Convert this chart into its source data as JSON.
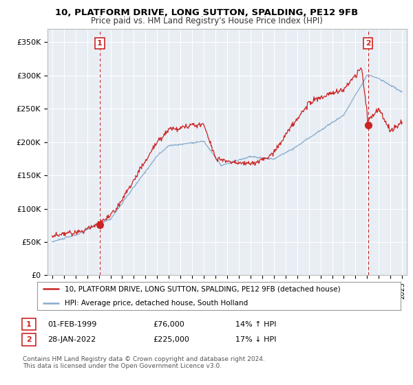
{
  "title": "10, PLATFORM DRIVE, LONG SUTTON, SPALDING, PE12 9FB",
  "subtitle": "Price paid vs. HM Land Registry's House Price Index (HPI)",
  "legend_line1": "10, PLATFORM DRIVE, LONG SUTTON, SPALDING, PE12 9FB (detached house)",
  "legend_line2": "HPI: Average price, detached house, South Holland",
  "footnote": "Contains HM Land Registry data © Crown copyright and database right 2024.\nThis data is licensed under the Open Government Licence v3.0.",
  "annotation1": {
    "num": "1",
    "date": "01-FEB-1999",
    "price": "£76,000",
    "change": "14% ↑ HPI"
  },
  "annotation2": {
    "num": "2",
    "date": "28-JAN-2022",
    "price": "£225,000",
    "change": "17% ↓ HPI"
  },
  "sale1_year": 1999.08,
  "sale1_price": 76000,
  "sale2_year": 2022.07,
  "sale2_price": 225000,
  "background_color": "#ffffff",
  "chart_bg_color": "#e8eef4",
  "red_color": "#cc2222",
  "blue_color": "#88aacc",
  "vline_color": "#cc2222",
  "grid_color": "#ffffff",
  "ylim": [
    0,
    370000
  ],
  "xlim_start": 1994.6,
  "xlim_end": 2025.4
}
